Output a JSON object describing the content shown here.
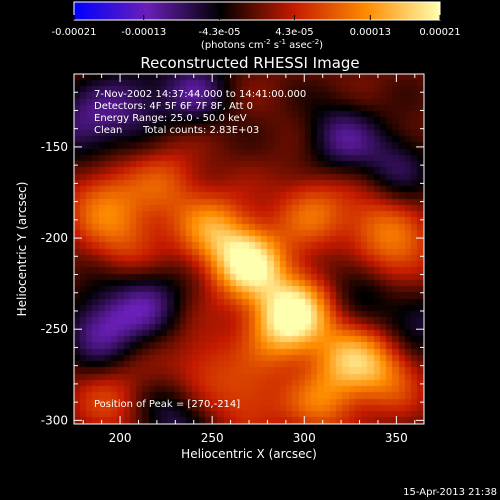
{
  "colorbar": {
    "ticks": [
      "-0.00021",
      "-0.00013",
      "-4.3e-05",
      "4.3e-05",
      "0.00013",
      "0.00021"
    ],
    "tick_values": [
      -0.00021,
      -0.00013,
      -4.3e-05,
      4.3e-05,
      0.00013,
      0.00021
    ],
    "range": [
      -0.00021,
      0.00021
    ],
    "units_prefix": "(photons cm",
    "units_exp1": "-2",
    "units_mid": " s",
    "units_exp2": "-1",
    "units_mid2": " asec",
    "units_exp3": "-2",
    "units_suffix": ")",
    "colors": [
      "#0000ff",
      "#6a1fb8",
      "#000000",
      "#c41a00",
      "#ff8c00",
      "#ffffb0"
    ]
  },
  "chart_data": {
    "type": "heatmap",
    "title": "Reconstructed RHESSI Image",
    "xlabel": "Heliocentric X (arcsec)",
    "ylabel": "Heliocentric Y (arcsec)",
    "xlim": [
      175,
      365
    ],
    "ylim": [
      -302,
      -110
    ],
    "xticks": [
      200,
      250,
      300,
      350
    ],
    "yticks": [
      -150,
      -200,
      -250,
      -300
    ],
    "xtick_labels": [
      "200",
      "250",
      "300",
      "350"
    ],
    "ytick_labels": [
      "-150",
      "-200",
      "-250",
      "-300"
    ],
    "annotations": {
      "time": "7-Nov-2002 14:37:44.000 to 14:41:00.000",
      "detectors": "Detectors: 4F 5F 6F 7F 8F, Att 0",
      "energy": "Energy Range: 25.0 - 50.0 keV",
      "method": "Clean",
      "counts": "Total counts: 2.83E+03",
      "peak": "Position of Peak = [270,-214]"
    },
    "peak": [
      270,
      -214
    ],
    "sources": [
      {
        "x": 270,
        "y": -214,
        "amp": 1.0
      },
      {
        "x": 250,
        "y": -195,
        "amp": 0.55
      },
      {
        "x": 297,
        "y": -238,
        "amp": 0.7
      },
      {
        "x": 287,
        "y": -250,
        "amp": 0.6
      },
      {
        "x": 325,
        "y": -265,
        "amp": 0.6
      },
      {
        "x": 345,
        "y": -275,
        "amp": 0.45
      },
      {
        "x": 310,
        "y": -290,
        "amp": 0.45
      },
      {
        "x": 270,
        "y": -290,
        "amp": 0.35
      },
      {
        "x": 190,
        "y": -180,
        "amp": 0.45
      },
      {
        "x": 205,
        "y": -200,
        "amp": 0.35
      },
      {
        "x": 225,
        "y": -170,
        "amp": 0.35
      },
      {
        "x": 305,
        "y": -185,
        "amp": 0.45
      },
      {
        "x": 340,
        "y": -195,
        "amp": 0.45
      },
      {
        "x": 355,
        "y": -215,
        "amp": 0.35
      },
      {
        "x": 195,
        "y": -290,
        "amp": 0.3
      },
      {
        "x": 245,
        "y": -270,
        "amp": 0.3
      },
      {
        "x": 215,
        "y": -235,
        "amp": -0.45
      },
      {
        "x": 190,
        "y": -250,
        "amp": -0.55
      },
      {
        "x": 180,
        "y": -140,
        "amp": -0.45
      },
      {
        "x": 205,
        "y": -125,
        "amp": -0.4
      },
      {
        "x": 240,
        "y": -120,
        "amp": -0.45
      },
      {
        "x": 320,
        "y": -145,
        "amp": -0.45
      },
      {
        "x": 350,
        "y": -160,
        "amp": -0.35
      },
      {
        "x": 360,
        "y": -245,
        "amp": -0.4
      },
      {
        "x": 230,
        "y": -300,
        "amp": -0.35
      },
      {
        "x": 330,
        "y": -225,
        "amp": -0.3
      }
    ]
  },
  "footer": {
    "timestamp": "15-Apr-2013 21:38"
  }
}
